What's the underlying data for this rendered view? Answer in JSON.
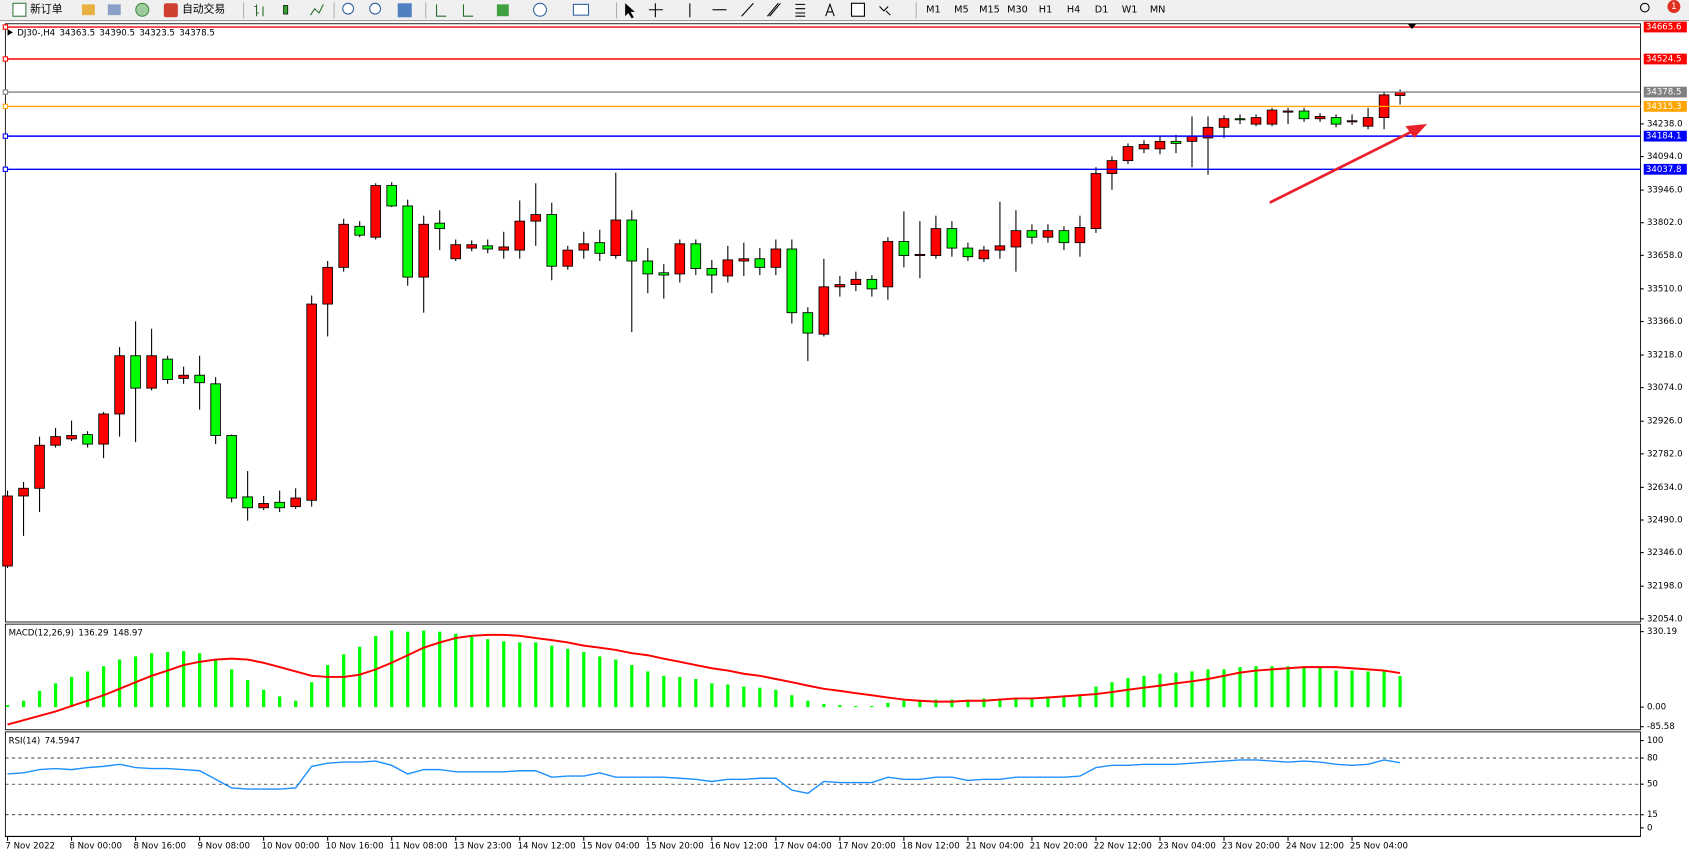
{
  "toolbar": {
    "buttons": [
      "新订单",
      "自动交易"
    ],
    "timeframes": [
      "M1",
      "M5",
      "M15",
      "M30",
      "H1",
      "H4",
      "D1",
      "W1",
      "MN"
    ],
    "badge": 1
  },
  "chart_data": [
    {
      "type": "candlestick",
      "title": "DJ30-,H4",
      "up_color": "#ff0000",
      "down_color": "#00ff00",
      "categories": [
        "7 Nov 2022",
        null,
        null,
        null,
        "8 Nov 00:00",
        null,
        null,
        null,
        "8 Nov 16:00",
        null,
        null,
        null,
        "9 Nov 08:00",
        null,
        null,
        null,
        "10 Nov 00:00",
        null,
        null,
        null,
        "10 Nov 16:00",
        null,
        null,
        null,
        "11 Nov 08:00",
        null,
        null,
        null,
        "13 Nov 23:00",
        null,
        null,
        null,
        "14 Nov 12:00",
        null,
        null,
        null,
        "15 Nov 04:00",
        null,
        null,
        null,
        "15 Nov 20:00",
        null,
        null,
        null,
        "16 Nov 12:00",
        null,
        null,
        null,
        "17 Nov 04:00",
        null,
        null,
        null,
        "17 Nov 20:00",
        null,
        null,
        null,
        "18 Nov 12:00",
        null,
        null,
        null,
        "21 Nov 04:00",
        null,
        null,
        null,
        "21 Nov 20:00",
        null,
        null,
        null,
        "22 Nov 12:00",
        null,
        null,
        null,
        "23 Nov 04:00",
        null,
        null,
        null,
        "23 Nov 20:00",
        null,
        null,
        null,
        "24 Nov 12:00",
        null,
        null,
        null,
        "25 Nov 04:00",
        null,
        null,
        null
      ],
      "open": [
        32287,
        32596,
        32630,
        32820,
        32848,
        32867,
        32825,
        32958,
        33215,
        33072,
        33200,
        33115,
        33129,
        33091,
        32863,
        32592,
        32544,
        32568,
        32549,
        32577,
        33443,
        33605,
        33786,
        33738,
        33966,
        33876,
        33562,
        33800,
        33643,
        33690,
        33700,
        33681,
        33681,
        33809,
        33838,
        33610,
        33681,
        33714,
        33657,
        33814,
        33633,
        33581,
        33576,
        33709,
        33600,
        33567,
        33633,
        33643,
        33605,
        33686,
        33405,
        33310,
        33519,
        33529,
        33552,
        33519,
        33719,
        33657,
        33657,
        33776,
        33690,
        33643,
        33681,
        33695,
        33767,
        33738,
        33767,
        33714,
        33776,
        34019,
        34076,
        34128,
        34128,
        34161,
        34161,
        34176,
        34223,
        34261,
        34237,
        34237,
        34290,
        34295,
        34261,
        34266,
        34247,
        34228,
        34266,
        34363.5
      ],
      "high": [
        32620,
        32658,
        32858,
        32896,
        32929,
        32882,
        32967,
        33253,
        33367,
        33334,
        33215,
        33167,
        33215,
        33120,
        32867,
        32706,
        32596,
        32620,
        32630,
        33481,
        33633,
        33819,
        33809,
        33976,
        33981,
        33904,
        33833,
        33857,
        33728,
        33724,
        33728,
        33762,
        33900,
        33976,
        33890,
        33700,
        33762,
        33771,
        34023,
        33857,
        33690,
        33619,
        33728,
        33728,
        33638,
        33700,
        33714,
        33690,
        33728,
        33728,
        33429,
        33643,
        33567,
        33586,
        33571,
        33738,
        33852,
        33809,
        33833,
        33809,
        33714,
        33700,
        33895,
        33857,
        33795,
        33795,
        33786,
        33833,
        34047,
        34095,
        34152,
        34166,
        34185,
        34190,
        34271,
        34271,
        34276,
        34280,
        34280,
        34309,
        34309,
        34309,
        34285,
        34280,
        34280,
        34309,
        34380,
        34390.5
      ],
      "low": [
        32278,
        32420,
        32525,
        32810,
        32839,
        32810,
        32763,
        32858,
        32834,
        33062,
        33091,
        33091,
        32977,
        32825,
        32568,
        32487,
        32534,
        32525,
        32539,
        32549,
        33300,
        33586,
        33738,
        33728,
        33871,
        33524,
        33405,
        33681,
        33633,
        33676,
        33667,
        33643,
        33643,
        33700,
        33548,
        33595,
        33643,
        33633,
        33643,
        33319,
        33491,
        33467,
        33538,
        33571,
        33491,
        33538,
        33567,
        33571,
        33571,
        33357,
        33191,
        33300,
        33476,
        33500,
        33476,
        33462,
        33605,
        33557,
        33643,
        33652,
        33633,
        33629,
        33643,
        33586,
        33709,
        33714,
        33681,
        33652,
        33757,
        33947,
        34061,
        34109,
        34104,
        34109,
        34047,
        34014,
        34176,
        34237,
        34228,
        34228,
        34237,
        34247,
        34247,
        34223,
        34233,
        34214,
        34214,
        34323.5
      ],
      "close": [
        32596,
        32630,
        32820,
        32858,
        32863,
        32825,
        32958,
        33215,
        33072,
        33215,
        33110,
        33129,
        33096,
        32863,
        32587,
        32544,
        32563,
        32544,
        32587,
        33443,
        33605,
        33795,
        33747,
        33966,
        33876,
        33562,
        33795,
        33776,
        33705,
        33705,
        33686,
        33695,
        33809,
        33838,
        33610,
        33681,
        33709,
        33667,
        33814,
        33633,
        33576,
        33571,
        33709,
        33600,
        33571,
        33638,
        33643,
        33605,
        33686,
        33405,
        33315,
        33519,
        33529,
        33552,
        33510,
        33719,
        33657,
        33662,
        33776,
        33690,
        33652,
        33681,
        33700,
        33767,
        33738,
        33767,
        33714,
        33781,
        34019,
        34076,
        34138,
        34147,
        34161,
        34152,
        34185,
        34223,
        34261,
        34257,
        34266,
        34299,
        34295,
        34261,
        34271,
        34237,
        34252,
        34266,
        34366,
        34378.5
      ],
      "levels": [
        {
          "value": 34665.6,
          "color": "#ff0000"
        },
        {
          "value": 34524.5,
          "color": "#ff0000"
        },
        {
          "value": 34378.5,
          "color": "#808080"
        },
        {
          "value": 34315.3,
          "color": "#ffa500"
        },
        {
          "value": 34184.1,
          "color": "#0000ff"
        },
        {
          "value": 34037.8,
          "color": "#0000ff"
        }
      ],
      "ylim": [
        32040,
        34680
      ],
      "yticks": [
        {
          "value": 34238,
          "label": "34238.0"
        },
        {
          "value": 34094,
          "label": "34094.0"
        },
        {
          "value": 33946,
          "label": "33946.0"
        },
        {
          "value": 33802,
          "label": "33802.0"
        },
        {
          "value": 33658,
          "label": "33658.0"
        },
        {
          "value": 33510,
          "label": "33510.0"
        },
        {
          "value": 33366,
          "label": "33366.0"
        },
        {
          "value": 33218,
          "label": "33218.0"
        },
        {
          "value": 33074,
          "label": "33074.0"
        },
        {
          "value": 32926,
          "label": "32926.0"
        },
        {
          "value": 32782,
          "label": "32782.0"
        },
        {
          "value": 32634,
          "label": "32634.0"
        },
        {
          "value": 32490,
          "label": "32490.0"
        },
        {
          "value": 32346,
          "label": "32346.0"
        },
        {
          "value": 32198,
          "label": "32198.0"
        },
        {
          "value": 32054,
          "label": "32054.0"
        }
      ],
      "grid": false
    },
    {
      "type": "macd",
      "title": "MACD(12,26,9)",
      "series": [
        {
          "style": "histogram",
          "color": "#00ff00",
          "values": [
            9,
            28,
            71,
            104,
            132,
            156,
            179,
            208,
            222,
            236,
            241,
            245,
            236,
            208,
            165,
            118,
            76,
            47,
            28,
            109,
            184,
            231,
            264,
            311,
            335,
            330,
            335,
            330,
            321,
            307,
            297,
            288,
            283,
            283,
            269,
            255,
            241,
            222,
            208,
            184,
            156,
            137,
            132,
            123,
            104,
            99,
            90,
            85,
            76,
            52,
            28,
            14,
            9,
            5,
            5,
            19,
            28,
            28,
            33,
            33,
            33,
            38,
            38,
            42,
            42,
            47,
            47,
            57,
            90,
            109,
            127,
            137,
            146,
            151,
            156,
            165,
            165,
            175,
            179,
            179,
            179,
            179,
            175,
            160,
            160,
            156,
            156,
            136.29
          ]
        },
        {
          "style": "line",
          "color": "#ff0000",
          "values": [
            -76,
            -57,
            -38,
            -19,
            5,
            28,
            52,
            80,
            109,
            137,
            160,
            184,
            198,
            208,
            212,
            208,
            194,
            175,
            156,
            137,
            132,
            132,
            142,
            165,
            194,
            227,
            260,
            283,
            302,
            312,
            316,
            316,
            312,
            302,
            293,
            283,
            269,
            260,
            250,
            236,
            227,
            212,
            198,
            184,
            170,
            160,
            146,
            137,
            123,
            109,
            94,
            80,
            71,
            61,
            52,
            42,
            33,
            28,
            24,
            24,
            28,
            28,
            33,
            38,
            38,
            42,
            47,
            52,
            57,
            66,
            76,
            85,
            94,
            104,
            113,
            123,
            137,
            151,
            160,
            165,
            170,
            175,
            175,
            175,
            170,
            165,
            160,
            148.97
          ]
        }
      ],
      "ylim": [
        -99,
        363
      ],
      "yticks": [
        330.19,
        {
          "value": 0,
          "label": "0.00"
        },
        -85.58
      ],
      "grid": false
    },
    {
      "type": "line",
      "title": "RSI(14)",
      "color": "#1e90ff",
      "values": [
        61.7,
        63,
        66.7,
        67.9,
        66.7,
        69.1,
        70.4,
        72.8,
        69.1,
        67.9,
        67.9,
        66.7,
        65.4,
        55.6,
        45.7,
        44.4,
        44.4,
        44.4,
        45.7,
        70.4,
        74.1,
        75.3,
        75.3,
        76.5,
        71.6,
        61.7,
        66.7,
        66.7,
        64.2,
        64.2,
        64.2,
        64.2,
        65.4,
        65.4,
        58,
        59.3,
        59.3,
        63,
        58,
        58,
        58,
        58,
        56.8,
        55.6,
        53.1,
        55.6,
        55.6,
        56.8,
        56.8,
        43.2,
        39.5,
        53.1,
        51.9,
        51.9,
        51.9,
        58,
        55.6,
        55.6,
        58,
        58,
        54.3,
        55.6,
        55.6,
        58,
        58,
        58,
        58,
        59.3,
        69.1,
        71.6,
        71.6,
        72.8,
        72.8,
        72.8,
        74.1,
        75.3,
        76.5,
        77.8,
        77.8,
        76.5,
        75.3,
        76.5,
        75.3,
        72.8,
        71.6,
        72.8,
        77.8,
        74.5947
      ],
      "ylim": [
        0,
        100
      ],
      "yticks": [
        100,
        80,
        50,
        15,
        0
      ],
      "grid": true
    }
  ]
}
